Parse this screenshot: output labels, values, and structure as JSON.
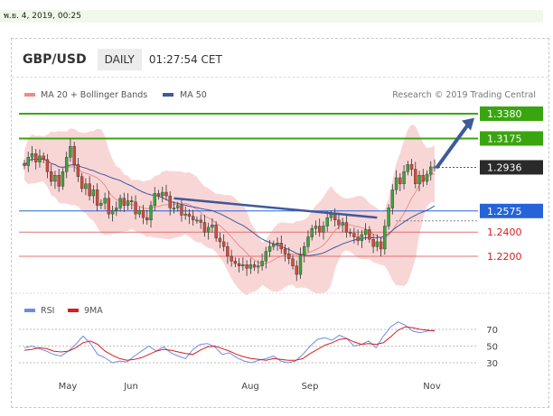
{
  "header_date": "พ.ย. 4, 2019, 00:25",
  "pair": "GBP/USD",
  "timeframe": "DAILY",
  "time": "01:27:54 CET",
  "legend": {
    "bollinger": "MA 20 + Bollinger Bands",
    "ma50": "MA 50",
    "research": "Research © 2019 Trading Central"
  },
  "rsi_legend": {
    "rsi": "RSI",
    "ma": "9MA"
  },
  "colors": {
    "up_candle": "#3aa63a",
    "down_candle": "#d44a3a",
    "bollinger": "#f7c8c8",
    "ma50": "#3f5a9a",
    "green_level": "#3aa60f",
    "blue_level": "#2563d9",
    "red_level": "#e07070",
    "rsi": "#6f8de0",
    "rsi_ma": "#d42020"
  },
  "chart_data": {
    "type": "candlestick",
    "instrument": "GBP/USD",
    "price_levels": [
      {
        "label": "1.3380",
        "value": 1.338,
        "style": "resistance",
        "color": "#3aa60f"
      },
      {
        "label": "1.3175",
        "value": 1.3175,
        "style": "resistance",
        "color": "#3aa60f"
      },
      {
        "label": "1.2936",
        "value": 1.2936,
        "style": "current",
        "color": "#2a2a2a"
      },
      {
        "label": "1.2575",
        "value": 1.2575,
        "style": "pivot",
        "color": "#2563d9"
      },
      {
        "label": "1.2400",
        "value": 1.24,
        "style": "support",
        "color": "#e07070"
      },
      {
        "label": "1.2200",
        "value": 1.22,
        "style": "support",
        "color": "#e07070"
      }
    ],
    "x_ticks": [
      "May",
      "Jun",
      "Aug",
      "Sep",
      "Nov"
    ],
    "price_path": [
      1.295,
      1.302,
      1.305,
      1.298,
      1.303,
      1.3,
      1.29,
      1.282,
      1.287,
      1.278,
      1.29,
      1.302,
      1.311,
      1.296,
      1.286,
      1.276,
      1.28,
      1.27,
      1.275,
      1.262,
      1.264,
      1.268,
      1.255,
      1.258,
      1.26,
      1.268,
      1.262,
      1.266,
      1.265,
      1.255,
      1.258,
      1.252,
      1.25,
      1.262,
      1.272,
      1.27,
      1.273,
      1.27,
      1.26,
      1.26,
      1.262,
      1.254,
      1.255,
      1.253,
      1.25,
      1.25,
      1.248,
      1.24,
      1.244,
      1.246,
      1.235,
      1.232,
      1.228,
      1.22,
      1.216,
      1.214,
      1.212,
      1.213,
      1.21,
      1.213,
      1.211,
      1.212,
      1.216,
      1.224,
      1.228,
      1.23,
      1.231,
      1.226,
      1.222,
      1.218,
      1.212,
      1.205,
      1.221,
      1.228,
      1.236,
      1.243,
      1.245,
      1.24,
      1.245,
      1.252,
      1.255,
      1.25,
      1.246,
      1.248,
      1.24,
      1.239,
      1.236,
      1.233,
      1.238,
      1.242,
      1.234,
      1.228,
      1.232,
      1.226,
      1.245,
      1.26,
      1.275,
      1.285,
      1.28,
      1.29,
      1.296,
      1.292,
      1.28,
      1.287,
      1.282,
      1.288,
      1.294,
      1.294
    ],
    "rsi": {
      "levels": [
        70,
        50,
        30
      ],
      "rsi_values": [
        48,
        50,
        47,
        44,
        40,
        38,
        44,
        52,
        62,
        53,
        40,
        36,
        30,
        32,
        31,
        38,
        44,
        50,
        44,
        49,
        42,
        38,
        35,
        46,
        52,
        53,
        49,
        40,
        42,
        36,
        32,
        30,
        33,
        35,
        38,
        32,
        30,
        32,
        40,
        50,
        58,
        60,
        57,
        63,
        59,
        50,
        52,
        56,
        48,
        62,
        73,
        79,
        75,
        68,
        66,
        68,
        69
      ],
      "ma_values": [
        45,
        46,
        48,
        47,
        44,
        43,
        44,
        48,
        54,
        56,
        52,
        44,
        39,
        35,
        33,
        34,
        36,
        40,
        44,
        46,
        45,
        43,
        41,
        40,
        45,
        49,
        50,
        47,
        44,
        40,
        37,
        35,
        34,
        33,
        35,
        34,
        33,
        33,
        35,
        41,
        46,
        51,
        54,
        58,
        59,
        55,
        52,
        53,
        52,
        54,
        61,
        69,
        73,
        72,
        70,
        69,
        68
      ]
    }
  }
}
